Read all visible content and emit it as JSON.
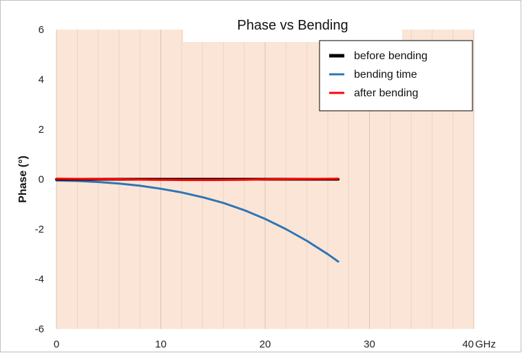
{
  "chart_data": {
    "type": "line",
    "title": "Phase vs Bending",
    "xlabel": "",
    "ylabel": "Phase (°)",
    "x_unit_label": "GHz",
    "xlim": [
      0,
      40
    ],
    "ylim": [
      -6,
      6
    ],
    "x_ticks": [
      0,
      10,
      20,
      30,
      40
    ],
    "y_ticks": [
      6,
      4,
      2,
      0,
      -2,
      -4,
      -6
    ],
    "grid": true,
    "legend_position": "top-right",
    "background_color": "#fbe5d6",
    "series": [
      {
        "name": "before bending",
        "color": "#000000",
        "x": [
          0,
          3,
          6,
          9,
          12,
          15,
          18,
          21,
          24,
          27
        ],
        "y": [
          0.0,
          0.0,
          0.0,
          0.0,
          0.0,
          0.0,
          0.0,
          0.0,
          0.0,
          0.0
        ]
      },
      {
        "name": "bending time",
        "color": "#2e75b6",
        "x": [
          0,
          2,
          4,
          6,
          8,
          10,
          12,
          14,
          16,
          18,
          20,
          22,
          24,
          26,
          27
        ],
        "y": [
          -0.05,
          -0.07,
          -0.11,
          -0.17,
          -0.26,
          -0.38,
          -0.53,
          -0.72,
          -0.95,
          -1.24,
          -1.59,
          -2.0,
          -2.47,
          -3.0,
          -3.3
        ]
      },
      {
        "name": "after bending",
        "color": "#ff0000",
        "x": [
          0,
          3,
          6,
          9,
          12,
          15,
          18,
          21,
          24,
          27
        ],
        "y": [
          0.02,
          0.01,
          0.0,
          -0.02,
          -0.03,
          -0.03,
          -0.02,
          0.0,
          0.01,
          0.02
        ]
      }
    ]
  }
}
